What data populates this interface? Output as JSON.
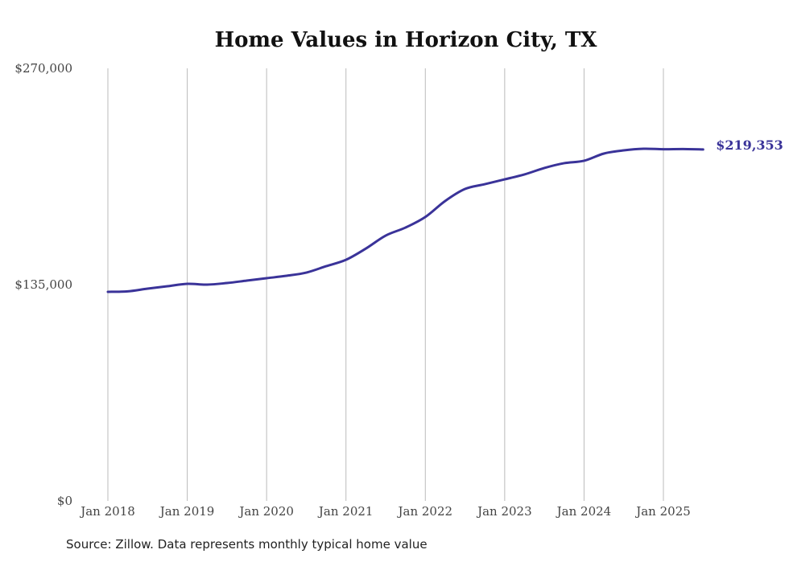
{
  "chart_data": {
    "type": "line",
    "title": "Home Values in Horizon City, TX",
    "xlabel": "",
    "ylabel": "",
    "ylim": [
      0,
      270000
    ],
    "xlim": [
      2018.0,
      2025.5
    ],
    "y_ticks": [
      {
        "value": 0,
        "label": "$0"
      },
      {
        "value": 135000,
        "label": "$135,000"
      },
      {
        "value": 270000,
        "label": "$270,000"
      }
    ],
    "x_ticks": [
      {
        "value": 2018,
        "label": "Jan 2018"
      },
      {
        "value": 2019,
        "label": "Jan 2019"
      },
      {
        "value": 2020,
        "label": "Jan 2020"
      },
      {
        "value": 2021,
        "label": "Jan 2021"
      },
      {
        "value": 2022,
        "label": "Jan 2022"
      },
      {
        "value": 2023,
        "label": "Jan 2023"
      },
      {
        "value": 2024,
        "label": "Jan 2024"
      },
      {
        "value": 2025,
        "label": "Jan 2025"
      }
    ],
    "grid": "vertical",
    "series": [
      {
        "name": "Typical home value",
        "color": "#3a3399",
        "x": [
          2018.0,
          2018.25,
          2018.5,
          2018.75,
          2019.0,
          2019.25,
          2019.5,
          2019.75,
          2020.0,
          2020.25,
          2020.5,
          2020.75,
          2021.0,
          2021.25,
          2021.5,
          2021.75,
          2022.0,
          2022.25,
          2022.5,
          2022.75,
          2023.0,
          2023.25,
          2023.5,
          2023.75,
          2024.0,
          2024.25,
          2024.5,
          2024.75,
          2025.0,
          2025.25,
          2025.5
        ],
        "values": [
          130500,
          130800,
          132500,
          134000,
          135500,
          135000,
          136000,
          137500,
          139000,
          140500,
          142500,
          146500,
          150500,
          157500,
          165600,
          170600,
          177200,
          187200,
          194700,
          197700,
          200700,
          203800,
          207800,
          210800,
          212300,
          216800,
          218800,
          219800,
          219500,
          219600,
          219353
        ]
      }
    ],
    "end_label": "$219,353",
    "source": "Source: Zillow. Data represents monthly typical home value"
  }
}
